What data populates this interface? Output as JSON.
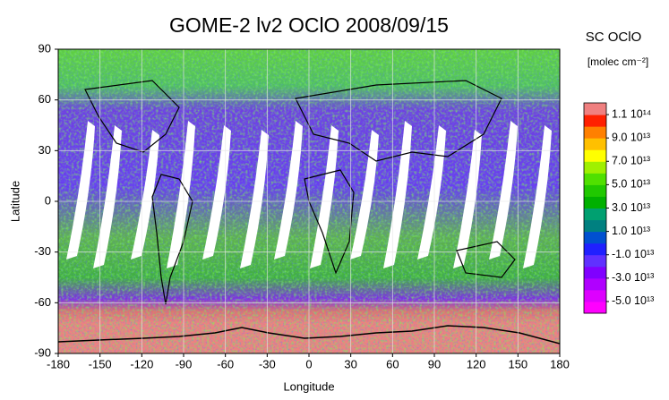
{
  "chart_data": {
    "type": "map",
    "title": "GOME-2 lv2 OClO 2008/09/15",
    "xlabel": "Longitude",
    "ylabel": "Latitude",
    "xlim": [
      -180,
      180
    ],
    "ylim": [
      -90,
      90
    ],
    "xticks": [
      -180,
      -150,
      -120,
      -90,
      -60,
      -30,
      0,
      30,
      60,
      90,
      120,
      150,
      180
    ],
    "yticks": [
      -90,
      -60,
      -30,
      0,
      30,
      60,
      90
    ],
    "grid": true,
    "colorbar": {
      "title": "SC OClO",
      "units": "[molec cm⁻²]",
      "lim": [
        -60000000000000,
        120000000000000
      ],
      "colors": [
        "#ff00ff",
        "#dd00ff",
        "#b000ff",
        "#8000ff",
        "#6030ff",
        "#2020ff",
        "#0050d0",
        "#008080",
        "#00a070",
        "#00b000",
        "#20c800",
        "#50e000",
        "#a0f000",
        "#ffff00",
        "#ffc000",
        "#ff8000",
        "#ff2000",
        "#f08080"
      ],
      "ticks": [
        {
          "value": 110000000000000,
          "label": "1.1 10¹⁴"
        },
        {
          "value": 90000000000000,
          "label": "9.0 10¹³"
        },
        {
          "value": 70000000000000,
          "label": "7.0 10¹³"
        },
        {
          "value": 50000000000000,
          "label": "5.0 10¹³"
        },
        {
          "value": 30000000000000,
          "label": "3.0 10¹³"
        },
        {
          "value": 10000000000000,
          "label": "1.0 10¹³"
        },
        {
          "value": -10000000000000,
          "label": "-1.0 10¹³"
        },
        {
          "value": -30000000000000,
          "label": "-3.0 10¹³"
        },
        {
          "value": -50000000000000,
          "label": "-5.0 10¹³"
        }
      ]
    }
  }
}
